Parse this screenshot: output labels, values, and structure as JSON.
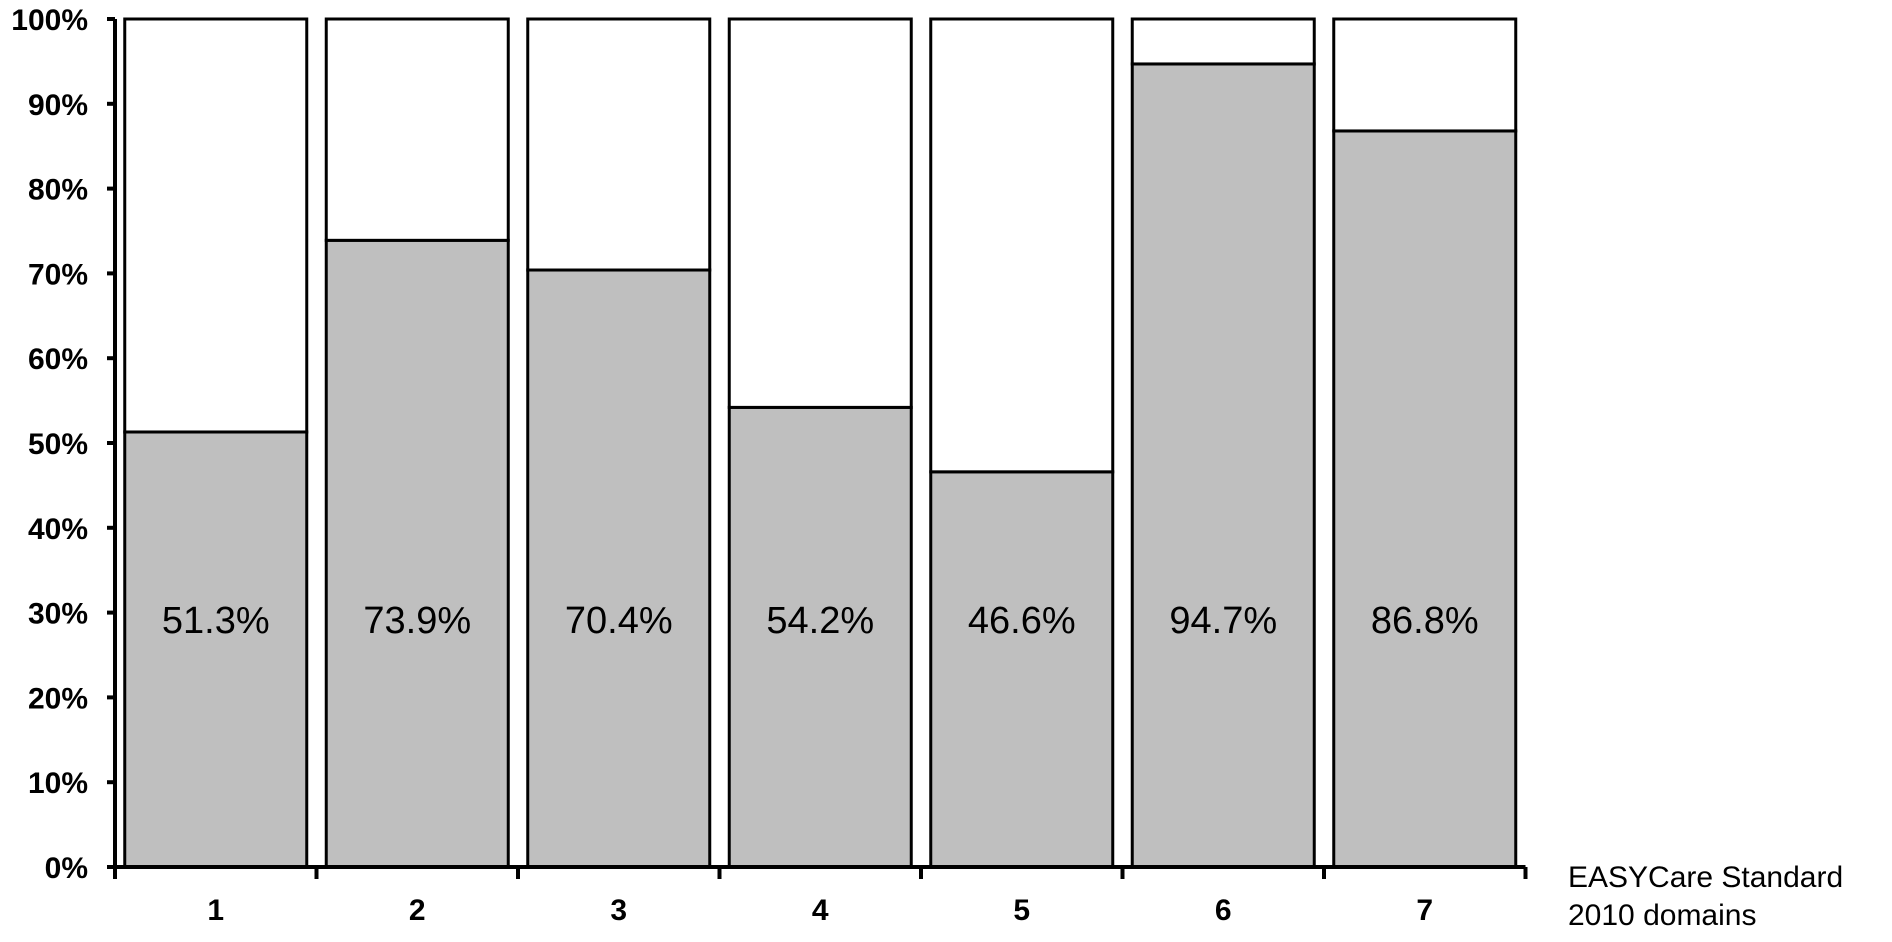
{
  "chart_data": {
    "type": "bar",
    "stacked": true,
    "categories": [
      "1",
      "2",
      "3",
      "4",
      "5",
      "6",
      "7"
    ],
    "series": [
      {
        "values": [
          51.3,
          73.9,
          70.4,
          54.2,
          46.6,
          94.7,
          86.8
        ],
        "color": "#bfbfbf"
      },
      {
        "values": [
          48.7,
          26.1,
          29.6,
          45.8,
          53.4,
          5.3,
          13.2
        ],
        "color": "#ffffff"
      }
    ],
    "data_labels": [
      "51.3%",
      "73.9%",
      "70.4%",
      "54.2%",
      "46.6%",
      "94.7%",
      "86.8%"
    ],
    "yticks": [
      "0%",
      "10%",
      "20%",
      "30%",
      "40%",
      "50%",
      "60%",
      "70%",
      "80%",
      "90%",
      "100%"
    ],
    "ylim": [
      0,
      100
    ],
    "xlabel_lines": [
      "EASYCare Standard",
      "2010 domains"
    ],
    "ylabel": "",
    "title": "",
    "grid": false,
    "legend": "none"
  }
}
